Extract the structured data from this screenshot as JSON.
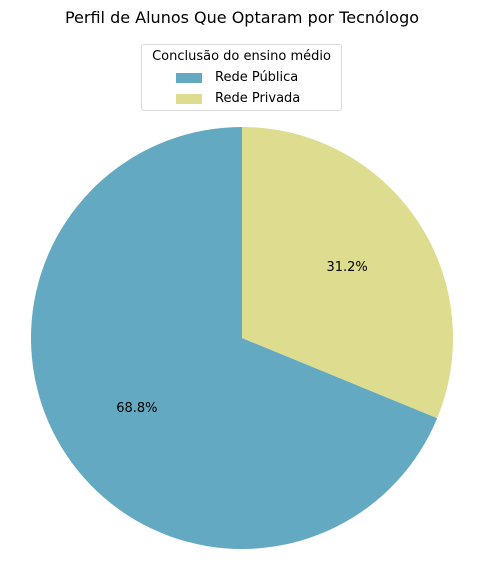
{
  "chart_data": {
    "type": "pie",
    "title": "Perfil de Alunos Que Optaram por Tecnólogo",
    "legend": {
      "title": "Conclusão do ensino médio",
      "placement": "top-center"
    },
    "start_angle_deg": 90,
    "direction": "counterclockwise",
    "slices": [
      {
        "name": "Rede Pública",
        "value": 68.8,
        "label": "68.8%",
        "color": "#63a9c2"
      },
      {
        "name": "Rede Privada",
        "value": 31.2,
        "label": "31.2%",
        "color": "#dedc8f"
      }
    ]
  }
}
